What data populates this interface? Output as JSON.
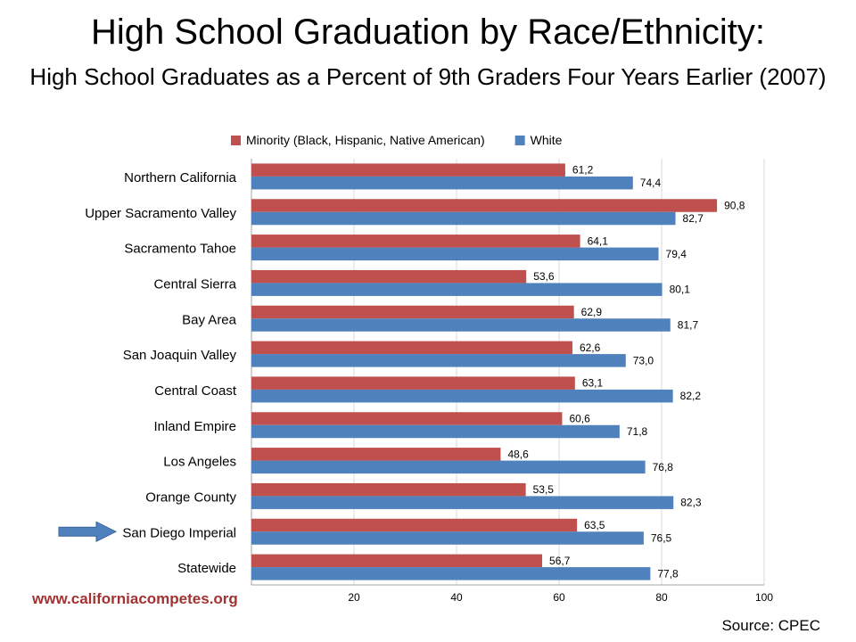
{
  "title": "High School Graduation by Race/Ethnicity:",
  "subtitle": "High School Graduates as a Percent of 9th Graders Four Years Earlier (2007)",
  "website": "www.californiacompetes.org",
  "source": "Source: CPEC",
  "highlight": {
    "category": "San Diego Imperial",
    "icon": "right-arrow-icon",
    "color": "#4f81bd"
  },
  "chart_data": {
    "type": "bar",
    "orientation": "horizontal",
    "categories": [
      "Northern California",
      "Upper Sacramento Valley",
      "Sacramento Tahoe",
      "Central Sierra",
      "Bay Area",
      "San Joaquin Valley",
      "Central Coast",
      "Inland Empire",
      "Los Angeles",
      "Orange County",
      "San Diego Imperial",
      "Statewide"
    ],
    "series": [
      {
        "name": "Minority (Black, Hispanic, Native American)",
        "color": "#c0504d",
        "values": [
          61.2,
          90.8,
          64.1,
          53.6,
          62.9,
          62.6,
          63.1,
          60.6,
          48.6,
          53.5,
          63.5,
          56.7
        ],
        "labels": [
          "61,2",
          "90,8",
          "64,1",
          "53,6",
          "62,9",
          "62,6",
          "63,1",
          "60,6",
          "48,6",
          "53,5",
          "63,5",
          "56,7"
        ]
      },
      {
        "name": "White",
        "color": "#4f81bd",
        "values": [
          74.4,
          82.7,
          79.4,
          80.1,
          81.7,
          73.0,
          82.2,
          71.8,
          76.8,
          82.3,
          76.5,
          77.8
        ],
        "labels": [
          "74,4",
          "82,7",
          "79,4",
          "80,1",
          "81,7",
          "73,0",
          "82,2",
          "71,8",
          "76,8",
          "82,3",
          "76,5",
          "77,8"
        ]
      }
    ],
    "xlim": [
      0,
      100
    ],
    "xticks": [
      20,
      40,
      60,
      80,
      100
    ],
    "grid": true,
    "legend": "top"
  }
}
